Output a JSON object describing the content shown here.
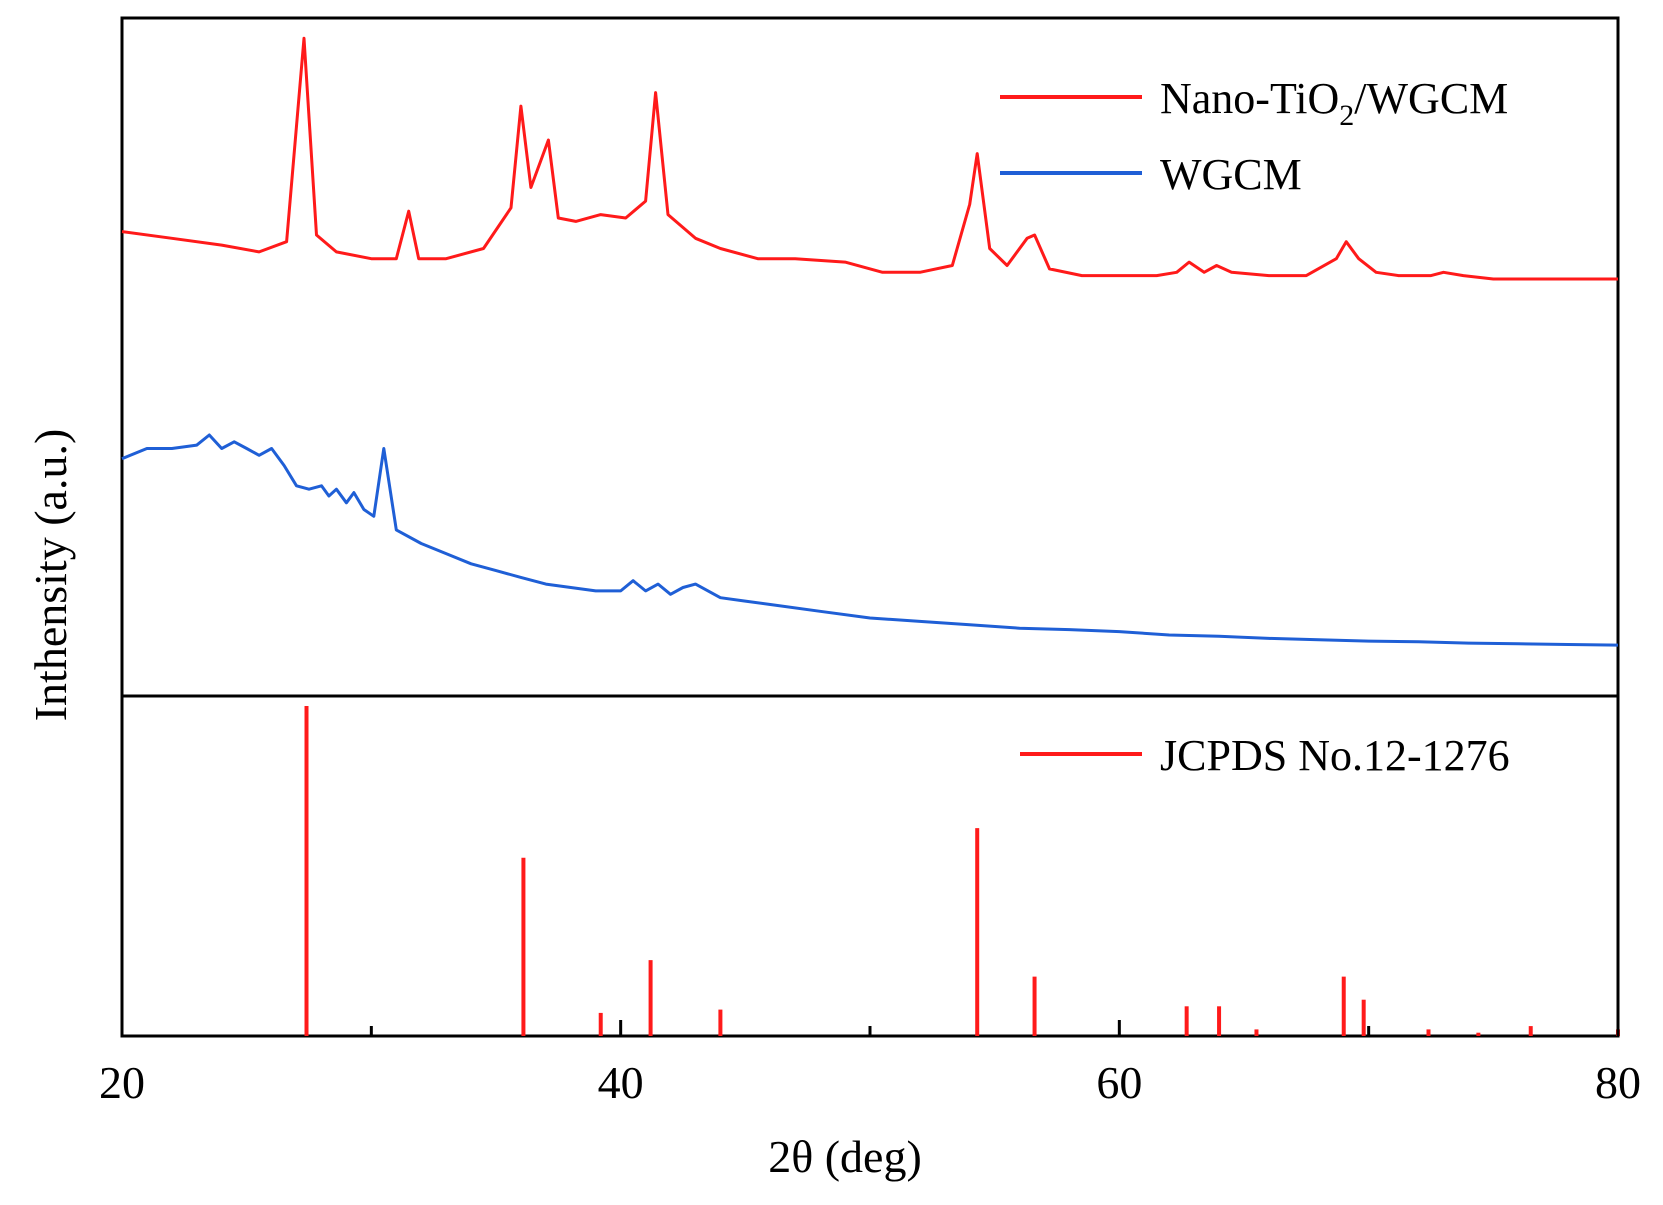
{
  "chart_data": {
    "type": "line",
    "xlabel": "2θ (deg)",
    "ylabel": "Inthensity (a.u.)",
    "xlim": [
      20,
      80
    ],
    "x_ticks": [
      20,
      40,
      60,
      80
    ],
    "x_minor_ticks": [
      30,
      50,
      70
    ],
    "grid": false,
    "legend_position": "top-right",
    "upper_panel": {
      "ylim": [
        0,
        100
      ],
      "series": [
        {
          "name": "Nano-TiO2/WGCM",
          "legend_main": "Nano-TiO",
          "legend_sub": "2",
          "legend_tail": "/WGCM",
          "color": "#ff1a1a",
          "x": [
            20,
            22,
            24,
            25.5,
            26.6,
            27.3,
            27.8,
            28.6,
            30,
            31,
            31.5,
            31.9,
            33,
            34.5,
            35.6,
            36.0,
            36.4,
            36.8,
            37.1,
            37.5,
            38.2,
            39.2,
            40.2,
            41.0,
            41.4,
            41.9,
            43,
            44.0,
            45.5,
            47,
            49,
            50.5,
            52,
            53.3,
            54.0,
            54.3,
            54.8,
            55.5,
            56.3,
            56.6,
            57.2,
            58.5,
            60,
            61.5,
            62.3,
            62.8,
            63.4,
            63.9,
            64.5,
            66,
            67.5,
            68.7,
            69.1,
            69.6,
            70.3,
            71.2,
            72.5,
            73.0,
            73.8,
            75,
            77.5,
            80
          ],
          "y": [
            68.5,
            67.5,
            66.5,
            65.5,
            67,
            97,
            68,
            65.5,
            64.5,
            64.5,
            71.5,
            64.5,
            64.5,
            66,
            72,
            87,
            75,
            79,
            82,
            70.5,
            70,
            71,
            70.5,
            73,
            89,
            71,
            67.5,
            66,
            64.5,
            64.5,
            64,
            62.5,
            62.5,
            63.5,
            72.5,
            80,
            66,
            63.5,
            67.5,
            68,
            63,
            62,
            62,
            62,
            62.5,
            64,
            62.5,
            63.5,
            62.5,
            62,
            62,
            64.5,
            67,
            64.5,
            62.5,
            62,
            62,
            62.5,
            62,
            61.5,
            61.5,
            61.5
          ]
        },
        {
          "name": "WGCM",
          "color": "#1f5fd6",
          "x": [
            20,
            21,
            22,
            23,
            23.5,
            24,
            24.5,
            25,
            25.5,
            26,
            26.5,
            27,
            27.5,
            28,
            28.3,
            28.6,
            29,
            29.3,
            29.7,
            30.1,
            30.5,
            31,
            32,
            33,
            34,
            35,
            36,
            37,
            38,
            39,
            40,
            40.5,
            41,
            41.5,
            42,
            42.5,
            43,
            44,
            45,
            46,
            48,
            50,
            52,
            54,
            56,
            58,
            60,
            62,
            64,
            66,
            68,
            70,
            72,
            74,
            76,
            78,
            80
          ],
          "y": [
            35,
            36.5,
            36.5,
            37,
            38.5,
            36.5,
            37.5,
            36.5,
            35.5,
            36.5,
            34,
            31,
            30.5,
            31,
            29.5,
            30.5,
            28.5,
            30,
            27.5,
            26.5,
            36.5,
            24.5,
            22.5,
            21,
            19.5,
            18.5,
            17.5,
            16.5,
            16,
            15.5,
            15.5,
            17,
            15.5,
            16.5,
            15,
            16,
            16.5,
            14.5,
            14,
            13.5,
            12.5,
            11.5,
            11,
            10.5,
            10,
            9.8,
            9.5,
            9,
            8.8,
            8.5,
            8.3,
            8.1,
            8,
            7.8,
            7.7,
            7.6,
            7.5
          ]
        }
      ]
    },
    "lower_panel": {
      "ylim": [
        0,
        100
      ],
      "series": [
        {
          "name": "JCPDS No.12-1276",
          "color": "#ff1a1a",
          "type": "stem",
          "x": [
            27.4,
            36.1,
            39.2,
            41.2,
            44.0,
            54.3,
            56.6,
            62.7,
            64.0,
            65.5,
            69.0,
            69.8,
            72.4,
            74.4,
            76.5,
            80
          ],
          "y": [
            100,
            54,
            7,
            23,
            8,
            63,
            18,
            9,
            9,
            2,
            18,
            11,
            2,
            1,
            3,
            2
          ]
        }
      ]
    }
  }
}
